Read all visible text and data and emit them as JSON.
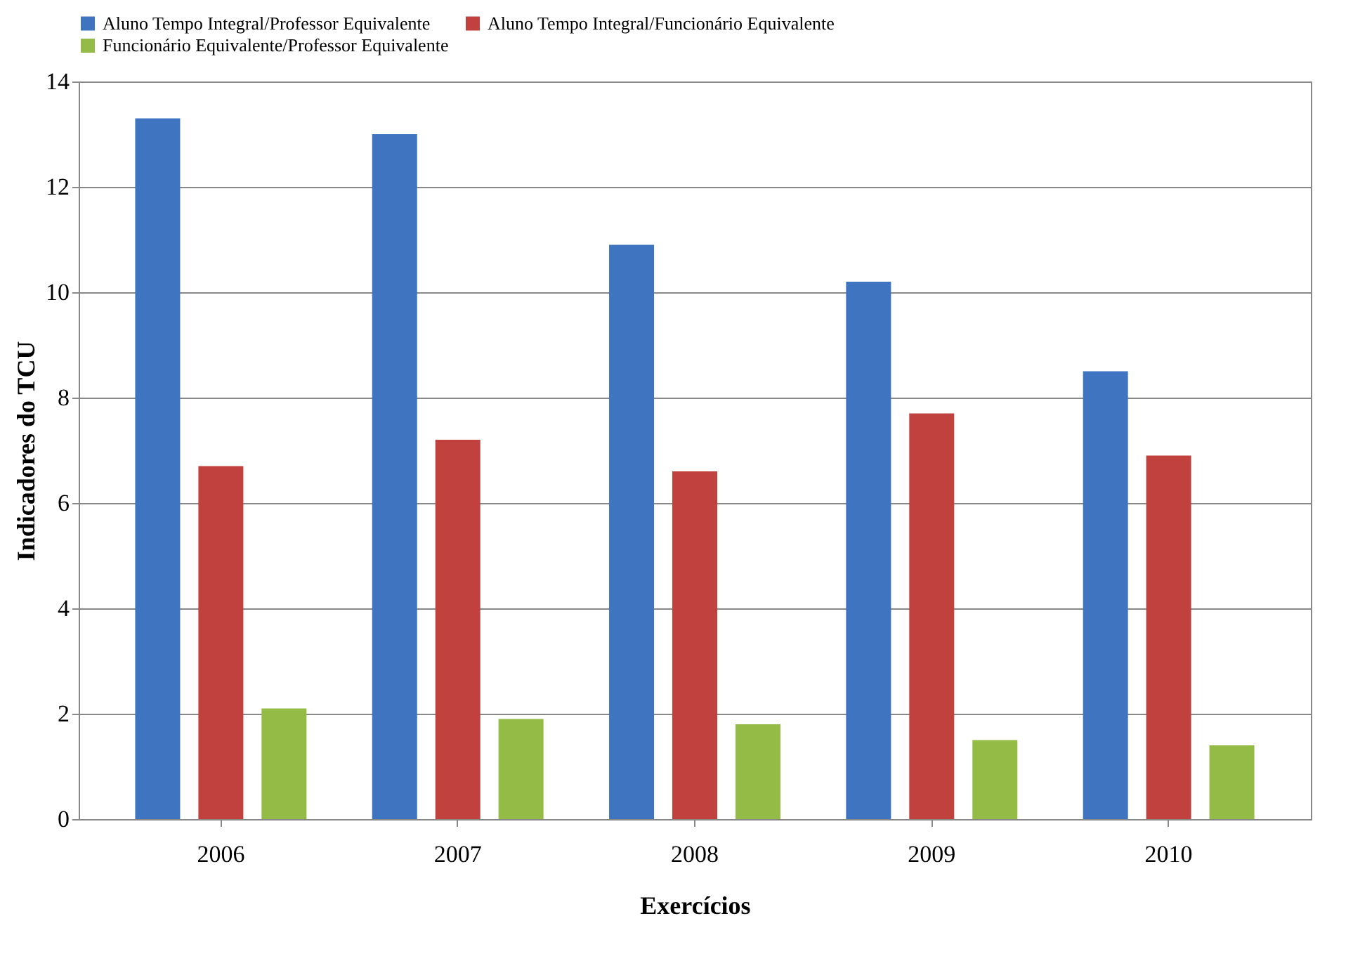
{
  "chart_data": {
    "type": "bar",
    "xlabel": "Exercícios",
    "ylabel": "Indicadores do TCU",
    "categories": [
      "2006",
      "2007",
      "2008",
      "2009",
      "2010"
    ],
    "series": [
      {
        "name": "Aluno Tempo Integral/Professor Equivalente",
        "color": "#3f74c0",
        "values": [
          13.3,
          13.0,
          10.9,
          10.2,
          8.5
        ]
      },
      {
        "name": "Aluno Tempo Integral/Funcionário Equivalente",
        "color": "#c0413d",
        "values": [
          6.7,
          7.2,
          6.6,
          7.7,
          6.9
        ]
      },
      {
        "name": "Funcionário Equivalente/Professor Equivalente",
        "color": "#94bb46",
        "values": [
          2.1,
          1.9,
          1.8,
          1.5,
          1.4
        ]
      }
    ],
    "ylim": [
      0,
      14
    ],
    "yticks": [
      0,
      2,
      4,
      6,
      8,
      10,
      12,
      14
    ],
    "grid": "y",
    "legend": "top"
  }
}
